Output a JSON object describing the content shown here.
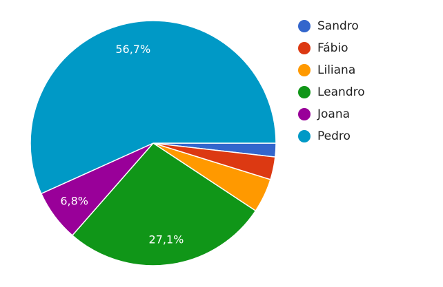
{
  "chart_data": {
    "type": "pie",
    "categories": [
      "Sandro",
      "Fábio",
      "Liliana",
      "Leandro",
      "Joana",
      "Pedro"
    ],
    "values": [
      1.8,
      3.0,
      4.5,
      27.1,
      6.8,
      56.7
    ],
    "value_labels": [
      null,
      null,
      null,
      "27,1%",
      "6,8%",
      "56,7%"
    ],
    "colors": [
      "#3366cc",
      "#dc3912",
      "#ff9900",
      "#109618",
      "#990099",
      "#0099c6"
    ],
    "legend": "right"
  }
}
